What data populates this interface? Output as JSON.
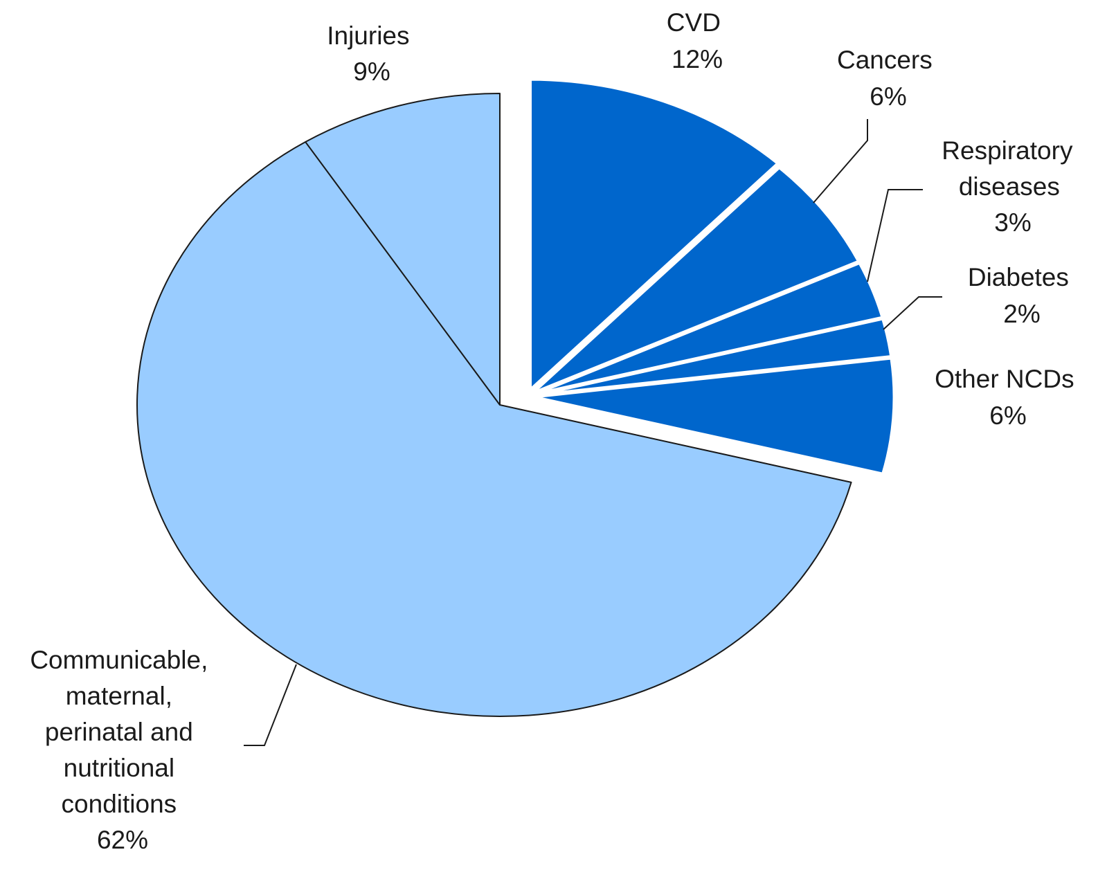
{
  "chart_data": {
    "type": "pie",
    "start": "12 o'clock",
    "direction": "clockwise",
    "slices": [
      {
        "label": "CVD",
        "value": 12,
        "value_text": "12%",
        "color": "#0066cc",
        "exploded": true
      },
      {
        "label": "Cancers",
        "value": 6,
        "value_text": "6%",
        "color": "#0066cc",
        "exploded": true
      },
      {
        "label": "Respiratory diseases",
        "value": 3,
        "value_text": "3%",
        "color": "#0066cc",
        "exploded": true
      },
      {
        "label": "Diabetes",
        "value": 2,
        "value_text": "2%",
        "color": "#0066cc",
        "exploded": true
      },
      {
        "label": "Other NCDs",
        "value": 6,
        "value_text": "6%",
        "color": "#0066cc",
        "exploded": true
      },
      {
        "label": "Communicable, maternal, perinatal and nutritional conditions",
        "value": 62,
        "value_text": "62%",
        "color": "#99ccff",
        "exploded": false
      },
      {
        "label": "Injuries",
        "value": 9,
        "value_text": "9%",
        "color": "#99ccff",
        "exploded": false
      }
    ]
  }
}
